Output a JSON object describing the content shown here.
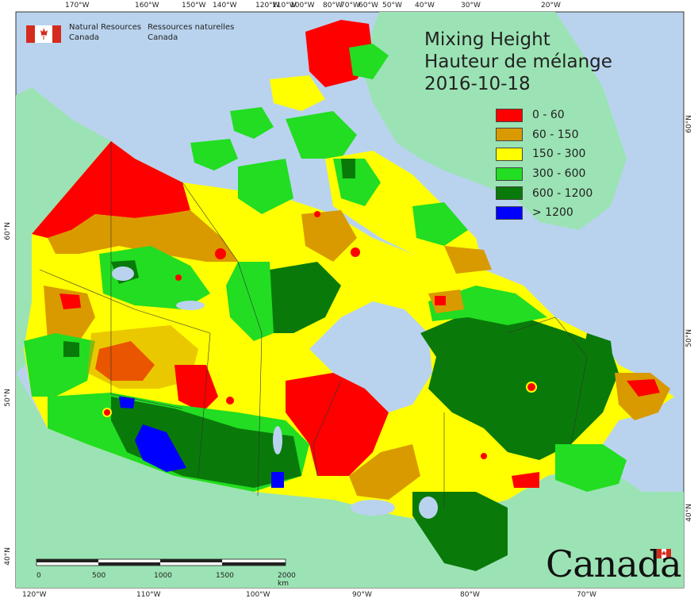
{
  "header": {
    "agency_en": [
      "Natural Resources",
      "Canada"
    ],
    "agency_fr": [
      "Ressources naturelles",
      "Canada"
    ]
  },
  "title": {
    "line1": "Mixing Height",
    "line2": "Hauteur de mélange",
    "date": "2016-10-18"
  },
  "legend": [
    {
      "label": "0 - 60",
      "color": "#ff0000"
    },
    {
      "label": "60 - 150",
      "color": "#d99a00"
    },
    {
      "label": "150 - 300",
      "color": "#ffff00"
    },
    {
      "label": "300 - 600",
      "color": "#22dd22"
    },
    {
      "label": "600 - 1200",
      "color": "#097a09"
    },
    {
      "label": "> 1200",
      "color": "#0000ff"
    }
  ],
  "graticule_top": [
    "170°W",
    "160°W",
    "150°W",
    "140°W",
    "120°W",
    "110°W",
    "100°W",
    "80°W",
    "70°W",
    "60°W",
    "50°W",
    "40°W",
    "30°W",
    "20°W"
  ],
  "graticule_bottom": [
    "120°W",
    "110°W",
    "100°W",
    "90°W",
    "80°W",
    "70°W"
  ],
  "graticule_left": [
    "60°N",
    "50°N",
    "40°N"
  ],
  "graticule_right": [
    "60°N",
    "50°N",
    "40°N"
  ],
  "scale_bar": {
    "labels": [
      "0",
      "500",
      "1000",
      "1500",
      "2000 km"
    ]
  },
  "wordmark": "Canada",
  "colors": {
    "ocean": "#b9d3ee",
    "land_other": "#9be3b4"
  }
}
